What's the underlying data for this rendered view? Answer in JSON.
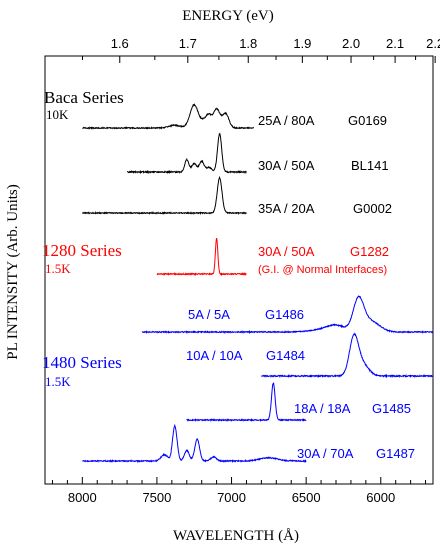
{
  "chart_data": {
    "type": "line",
    "x_unit": "wavelength (Å)",
    "xlabel": "WAVELENGTH (Å)",
    "ylabel": "PL INTENSITY (Arb. Units)",
    "top_axis_label": "ENERGY (eV)",
    "xlim": [
      8250,
      5650
    ],
    "x_ticks": [
      "8000",
      "7500",
      "7000",
      "6500",
      "6000"
    ],
    "top_ticks": [
      "1.6",
      "1.7",
      "1.8",
      "1.9",
      "2.0",
      "2.1",
      "2.2"
    ],
    "grid": false,
    "groups": [
      {
        "name": "Baca Series",
        "temperature": "10K",
        "color": "#000000"
      },
      {
        "name": "1280 Series",
        "temperature": "1.5K",
        "color": "#ff0000"
      },
      {
        "name": "1480 Series",
        "temperature": "1.5K",
        "color": "#0000ff"
      }
    ],
    "series": [
      {
        "label": "25A / 80A",
        "sample": "G0169",
        "group": "Baca Series",
        "color": "#000000",
        "x_range": [
          8000,
          6850
        ],
        "baseline": 0,
        "peaks": [
          [
            7250,
            0.68,
            28
          ],
          [
            7180,
            0.2,
            22
          ],
          [
            7150,
            0.3,
            18
          ],
          [
            7100,
            0.55,
            22
          ],
          [
            7040,
            0.42,
            22
          ],
          [
            7380,
            0.08,
            40
          ]
        ]
      },
      {
        "label": "30A / 50A",
        "sample": "BL141",
        "group": "Baca Series",
        "color": "#000000",
        "x_range": [
          7700,
          6900
        ],
        "baseline": 0,
        "peaks": [
          [
            7080,
            1.0,
            14
          ],
          [
            7300,
            0.32,
            14
          ],
          [
            7250,
            0.22,
            16
          ],
          [
            7200,
            0.28,
            16
          ],
          [
            7150,
            0.12,
            18
          ]
        ]
      },
      {
        "label": "35A / 20A",
        "sample": "G0002",
        "group": "Baca Series",
        "color": "#000000",
        "x_range": [
          8000,
          6900
        ],
        "baseline": 0,
        "peaks": [
          [
            7080,
            1.0,
            16
          ]
        ]
      },
      {
        "label": "30A / 50A",
        "sample": "G1282",
        "note": "(G.I. @ Normal Interfaces)",
        "group": "1280 Series",
        "color": "#ff0000",
        "x_range": [
          7500,
          6900
        ],
        "baseline": 0,
        "peaks": [
          [
            7100,
            1.0,
            8
          ]
        ]
      },
      {
        "label": "5A / 5A",
        "sample": "G1486",
        "group": "1480 Series",
        "color": "#0000ff",
        "x_range": [
          7600,
          5650
        ],
        "baseline": 0,
        "peaks": [
          [
            6150,
            0.9,
            35
          ],
          [
            6070,
            0.32,
            60
          ],
          [
            6300,
            0.18,
            60
          ],
          [
            6400,
            0.06,
            80
          ]
        ]
      },
      {
        "label": "10A / 10A",
        "sample": "G1484",
        "group": "1480 Series",
        "color": "#0000ff",
        "x_range": [
          6800,
          5650
        ],
        "baseline": 0,
        "peaks": [
          [
            6180,
            1.0,
            30
          ],
          [
            6120,
            0.3,
            40
          ]
        ]
      },
      {
        "label": "18A / 18A",
        "sample": "G1485",
        "group": "1480 Series",
        "color": "#0000ff",
        "x_range": [
          7300,
          6500
        ],
        "baseline": 0,
        "peaks": [
          [
            6720,
            1.0,
            12
          ]
        ]
      },
      {
        "label": "30A / 70A",
        "sample": "G1487",
        "group": "1480 Series",
        "color": "#0000ff",
        "x_range": [
          8000,
          6500
        ],
        "baseline": 0,
        "peaks": [
          [
            7380,
            1.0,
            15
          ],
          [
            7230,
            0.62,
            16
          ],
          [
            7300,
            0.3,
            16
          ],
          [
            7120,
            0.12,
            18
          ],
          [
            7450,
            0.18,
            22
          ],
          [
            6750,
            0.09,
            60
          ]
        ]
      }
    ]
  }
}
